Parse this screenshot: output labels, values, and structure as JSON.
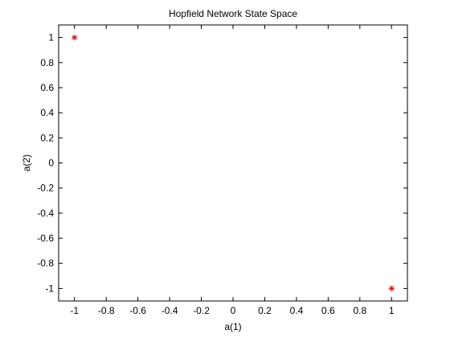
{
  "chart_data": {
    "type": "scatter",
    "title": "Hopfield Network State Space",
    "xlabel": "a(1)",
    "ylabel": "a(2)",
    "xlim": [
      -1.1,
      1.1
    ],
    "ylim": [
      -1.1,
      1.1
    ],
    "xticks": [
      -1,
      -0.8,
      -0.6,
      -0.4,
      -0.2,
      0,
      0.2,
      0.4,
      0.6,
      0.8,
      1
    ],
    "yticks": [
      -1,
      -0.8,
      -0.6,
      -0.4,
      -0.2,
      0,
      0.2,
      0.4,
      0.6,
      0.8,
      1
    ],
    "xtick_labels": [
      "-1",
      "-0.8",
      "-0.6",
      "-0.4",
      "-0.2",
      "0",
      "0.2",
      "0.4",
      "0.6",
      "0.8",
      "1"
    ],
    "ytick_labels": [
      "-1",
      "-0.8",
      "-0.6",
      "-0.4",
      "-0.2",
      "0",
      "0.2",
      "0.4",
      "0.6",
      "0.8",
      "1"
    ],
    "grid": false,
    "marker": "asterisk",
    "marker_color": "#ff0000",
    "points": [
      {
        "x": -1,
        "y": 1
      },
      {
        "x": 1,
        "y": -1
      }
    ]
  }
}
